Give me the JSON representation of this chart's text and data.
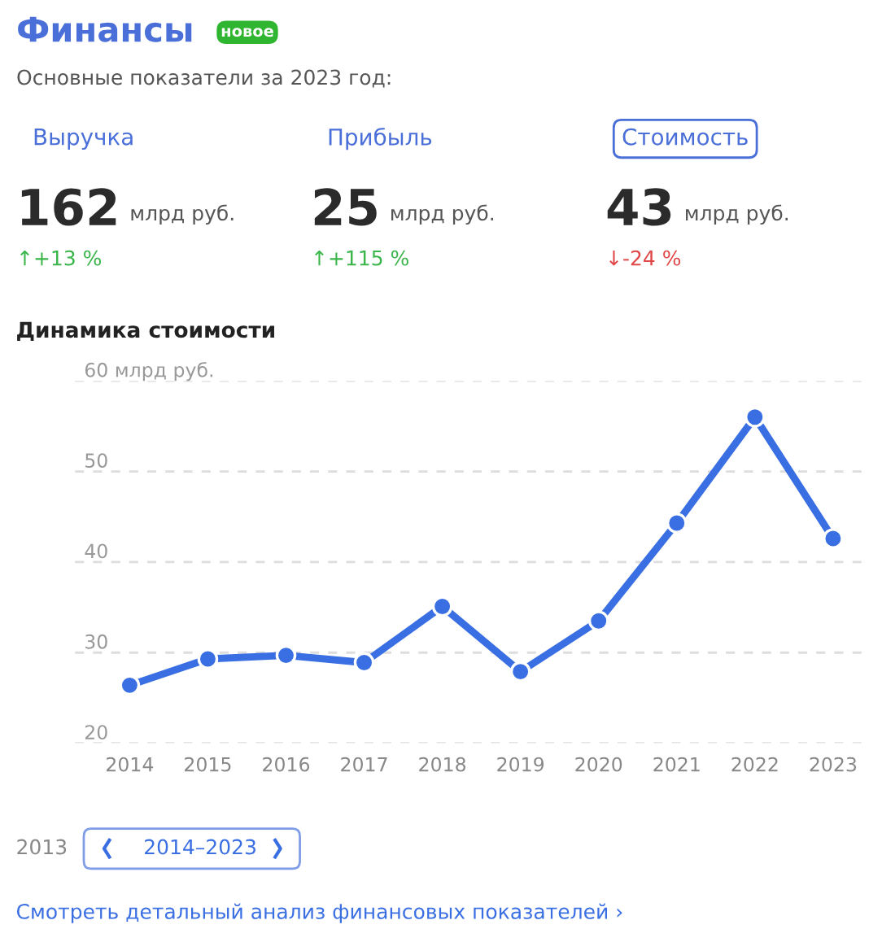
{
  "chart_data": [
    {
      "type": "other",
      "title": "Финансы",
      "subtitle": "Основные показатели за 2023 год:",
      "annotations": [
        "новое",
        "Выручка",
        "162",
        "млрд руб.",
        "↑+13 %",
        "Прибыль",
        "25",
        "млрд руб.",
        "↑+115 %",
        "Стоимость",
        "43",
        "млрд руб.",
        "↓-24 %"
      ],
      "colors": [
        "#3ab54a",
        "#3ab54a",
        "#e04848"
      ]
    },
    {
      "type": "line",
      "title": "Динамика стоимости",
      "categories": [
        "2014",
        "2015",
        "2016",
        "2017",
        "2018",
        "2019",
        "2020",
        "2021",
        "2022",
        "2023"
      ],
      "series": [
        {
          "color": "#3a6fe3",
          "values": [
            26.4,
            29.3,
            29.7,
            28.9,
            35.1,
            27.9,
            33.5,
            44.3,
            56.0,
            42.6
          ]
        }
      ],
      "ylim": [
        20,
        60
      ],
      "yticks": [
        20,
        30,
        40,
        50,
        {
          "value": 60,
          "label": "60 млрд руб."
        }
      ],
      "grid": "y",
      "marker": "circle",
      "line_style": "solid",
      "legend": false,
      "annotations": [
        "2013",
        "2014–2023",
        "Смотреть детальный анализ финансовых показателей ›"
      ]
    }
  ]
}
